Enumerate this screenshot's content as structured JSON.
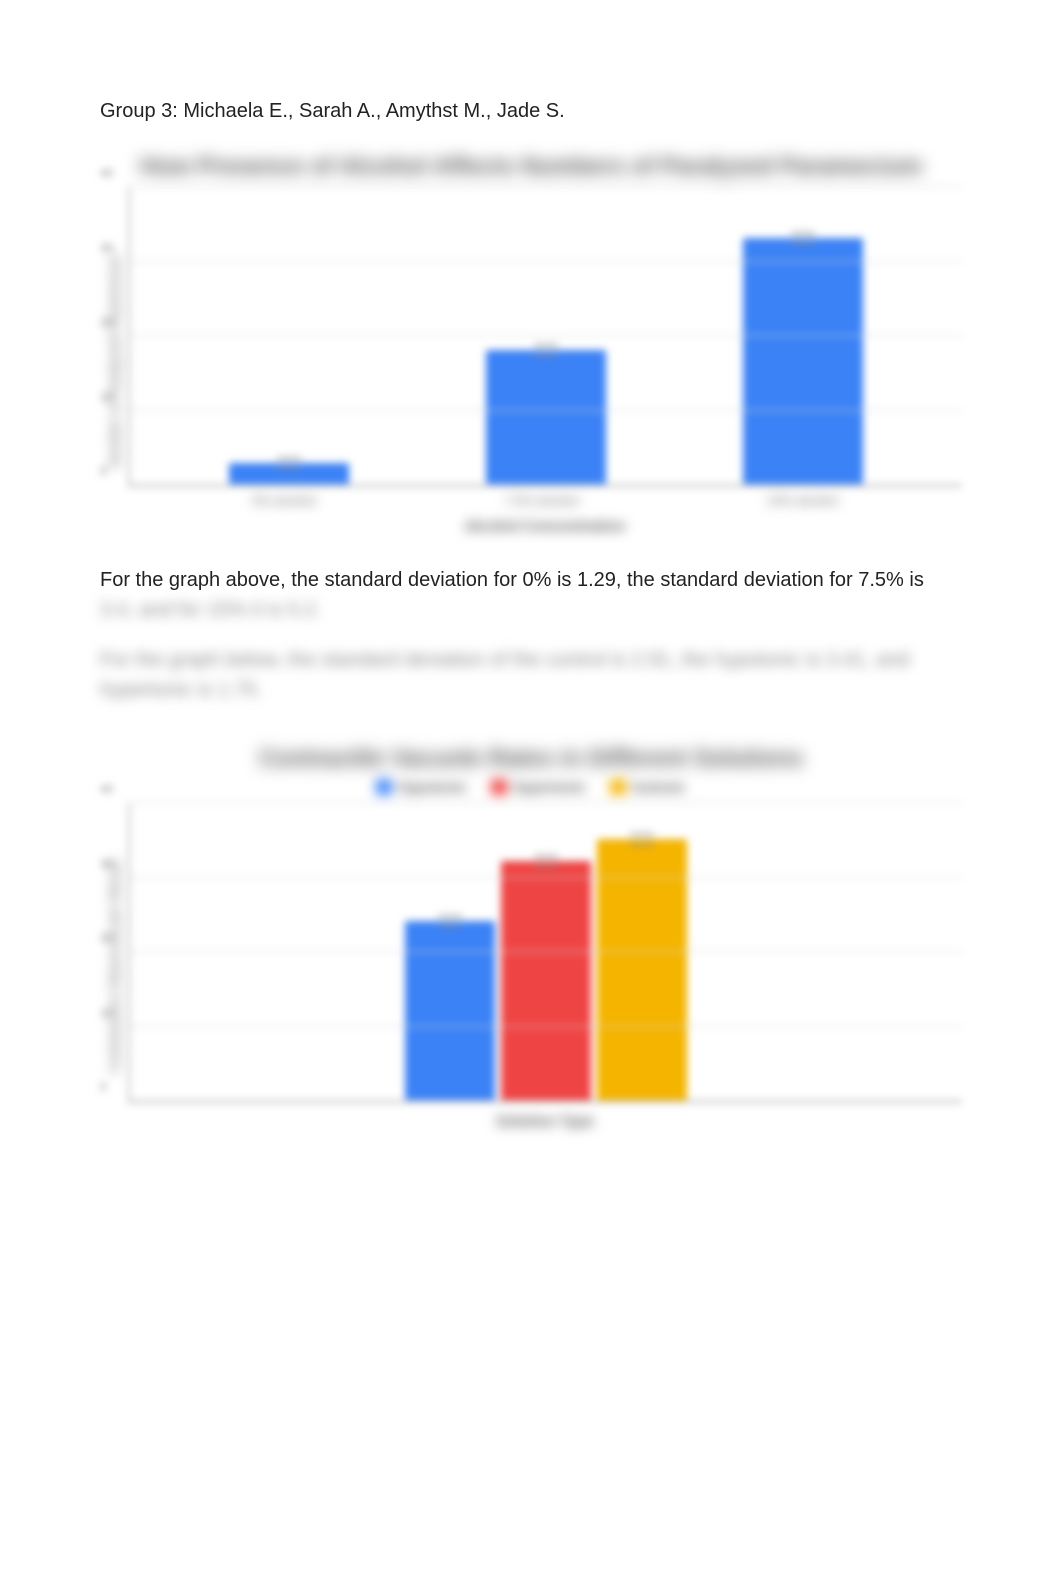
{
  "header": "Group 3: Michaela E., Sarah A., Amythst M., Jade S.",
  "paragraph1_visible": "For the graph above, the standard deviation for 0% is 1.29, the standard deviation for 7.5% is",
  "paragraph1_blurred": "3.4, and for 15% it is 5.2.",
  "paragraph2_blurred": "For the graph below, the standard deviation of the control is 2.91, the hypotonic is 3.41, and hypertonic is 1.75.",
  "chart1": {
    "type": "bar",
    "title": "How Presence of Alcohol Affects Numbers of Paralyzed Paramecium",
    "y_label": "Number of Paralyzed Paramecium",
    "x_label": "Alcohol Concentration",
    "categories": [
      "0% alcohol",
      "7.5% alcohol",
      "15% alcohol"
    ],
    "values": [
      3,
      18,
      33
    ],
    "ylim": [
      0,
      40
    ],
    "ytick_step": 10,
    "bar_color": "#3b82f6",
    "grid_color": "#d9d9d9",
    "background_color": "#ffffff"
  },
  "chart2": {
    "type": "grouped-bar",
    "title": "Contractile Vacuole Rates in Different Solutions",
    "y_label": "Contractions Observed per Minute",
    "x_label": "Solution Type",
    "legend": [
      "Hypotonic",
      "Hypertonic",
      "Isotonic"
    ],
    "legend_colors": [
      "#3b82f6",
      "#ef4444",
      "#f4b400"
    ],
    "values": [
      24,
      32,
      35
    ],
    "ylim": [
      0,
      40
    ],
    "ytick_step": 10,
    "grid_color": "#d9d9d9",
    "background_color": "#ffffff"
  }
}
